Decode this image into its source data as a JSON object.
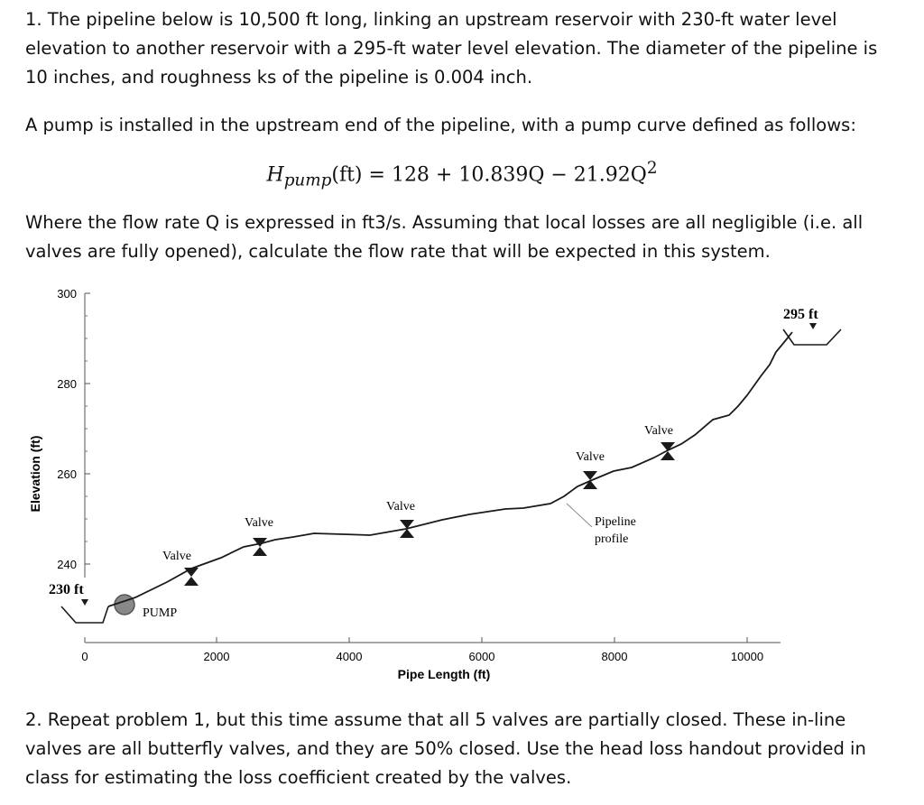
{
  "problem1": {
    "intro": "1. The pipeline below is 10,500 ft long, linking an upstream reservoir with 230-ft water level elevation to another reservoir with a 295-ft water level elevation. The diameter of the pipeline is 10 inches, and roughness ks of the pipeline is 0.004 inch.",
    "pump_sentence": "A pump is installed in the upstream end of the pipeline, with a pump curve defined as follows:",
    "equation": {
      "lhs_symbol": "H",
      "lhs_subscript": "pump",
      "lhs_unit": "(ft)",
      "rhs": "= 128 + 10.839Q − 21.92Q",
      "rhs_exponent": "2"
    },
    "question": "Where the flow rate Q is expressed in ft3/s. Assuming that local losses are all negligible (i.e. all valves are fully opened), calculate the flow rate that will be expected in this system."
  },
  "figure": {
    "y_axis_label": "Elevation (ft)",
    "x_axis_label": "Pipe Length (ft)",
    "y_ticks": [
      "300",
      "280",
      "260",
      "240"
    ],
    "x_ticks": [
      "0",
      "2000",
      "4000",
      "6000",
      "8000",
      "10000"
    ],
    "upstream_level": "230 ft",
    "downstream_level": "295 ft",
    "pump_label": "PUMP",
    "valve_label": "Valve",
    "pipeline_label_line1": "Pipeline",
    "pipeline_label_line2": "profile",
    "colors": {
      "line": "#1a1a1a",
      "axis": "#555555",
      "pump": "#888888"
    }
  },
  "problem2": {
    "text": "2. Repeat problem 1, but this time assume that all 5 valves are partially closed. These in-line valves are all butterfly valves, and they are 50% closed. Use the head loss handout provided in class for estimating the loss coefficient created by the valves."
  }
}
